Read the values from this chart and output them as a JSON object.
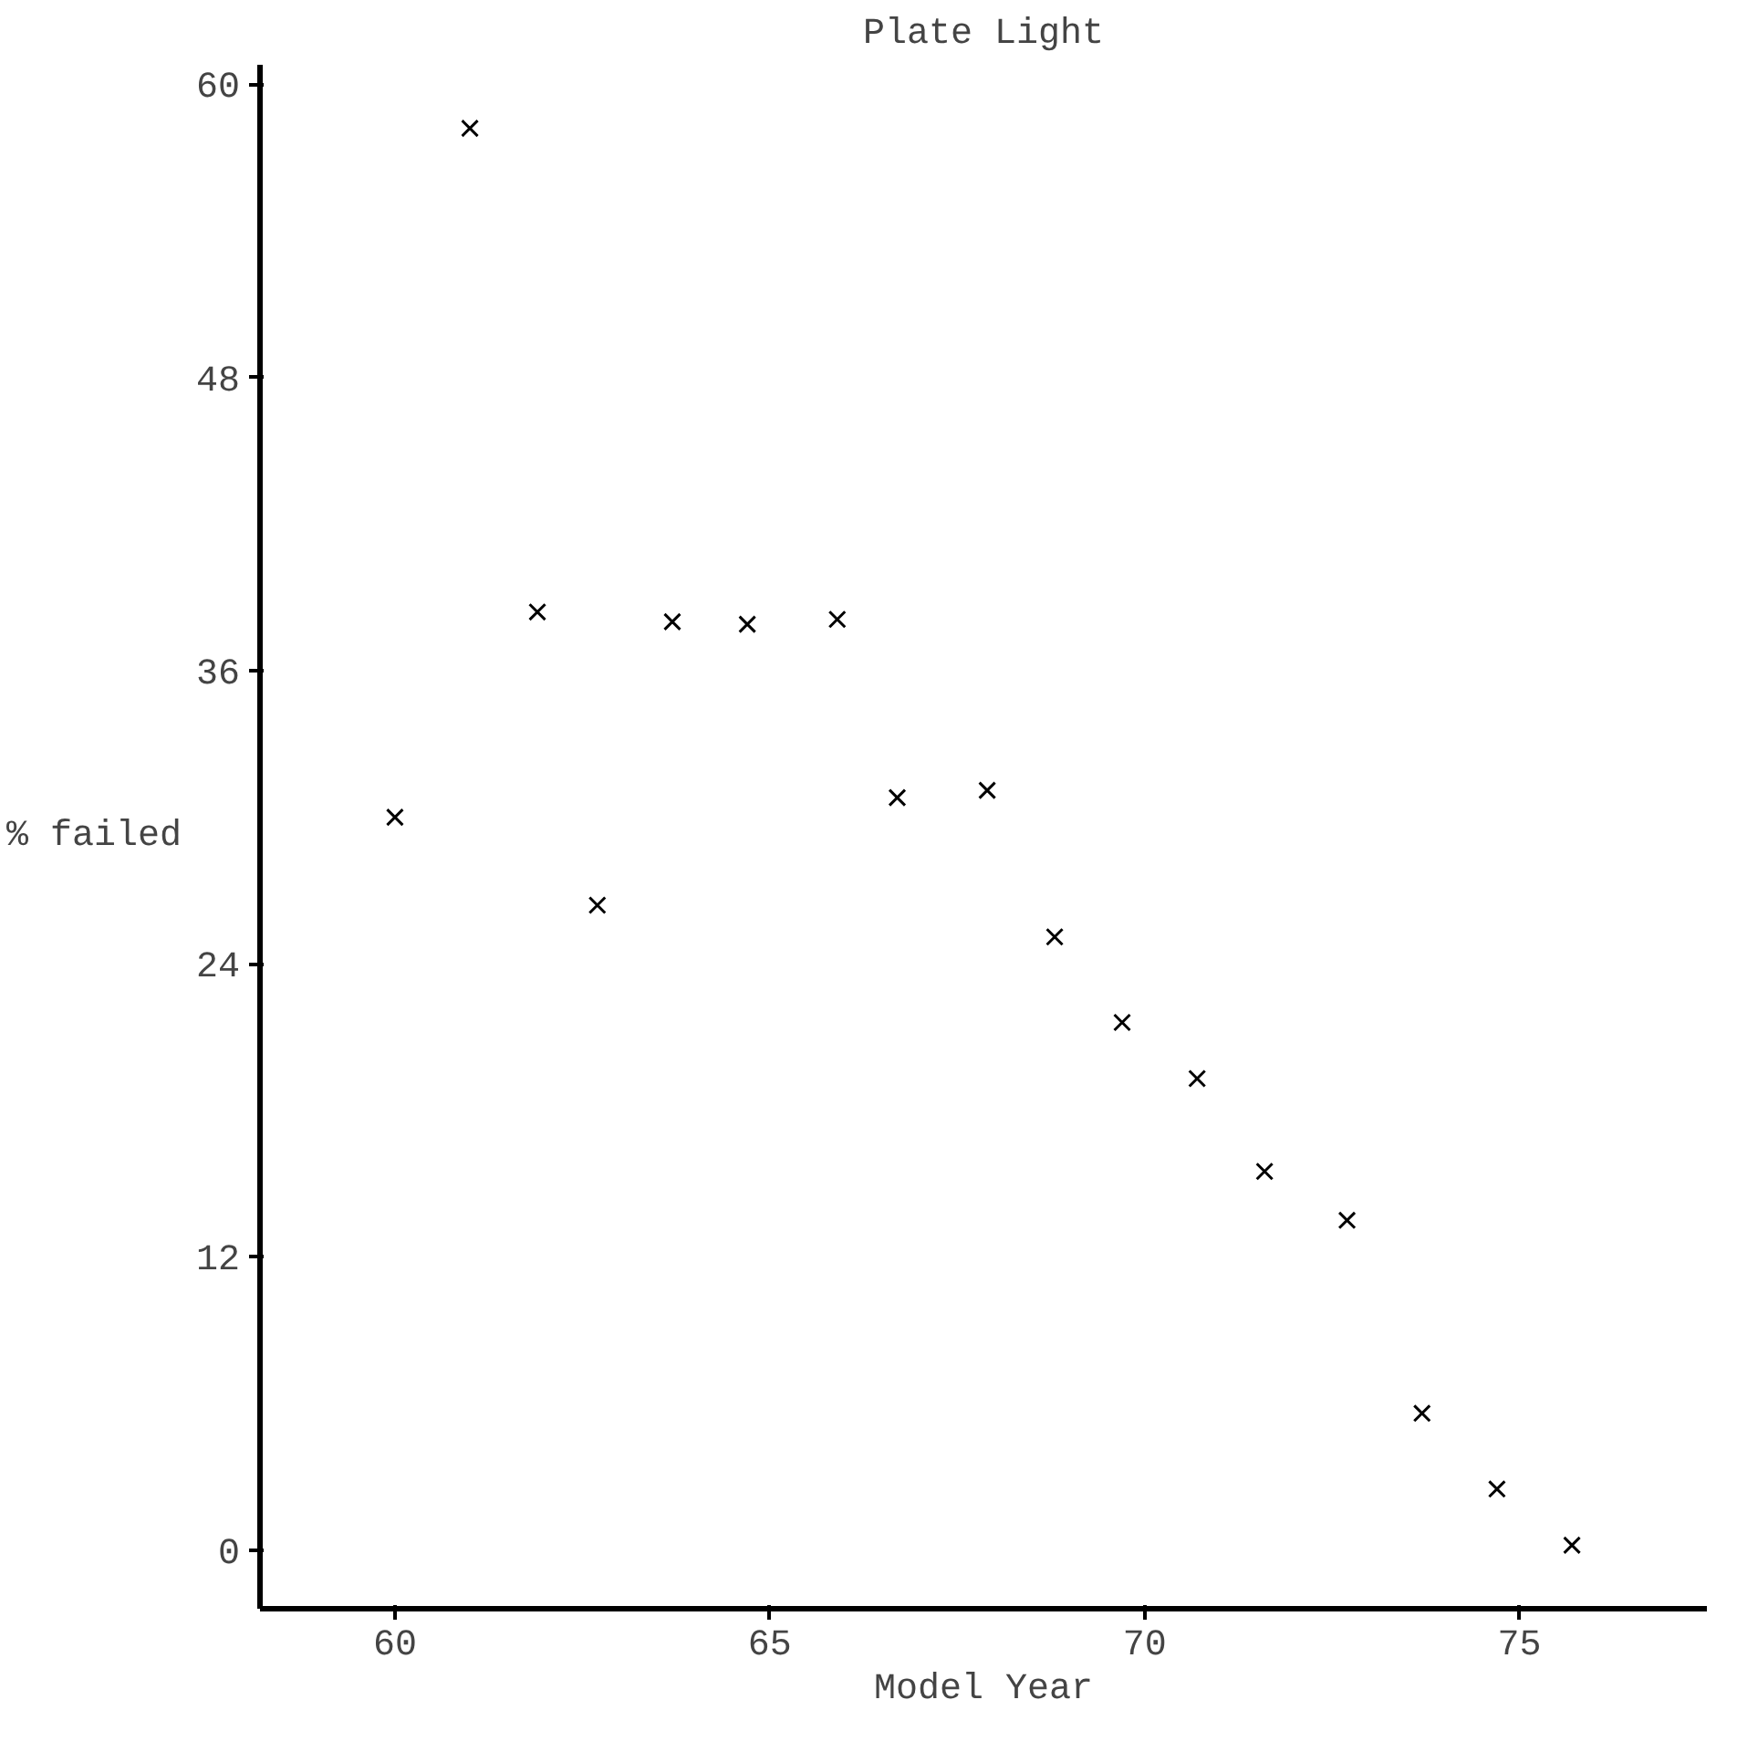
{
  "chart_data": {
    "type": "scatter",
    "title": "Plate Light",
    "xlabel": "Model Year",
    "ylabel": "% failed",
    "x": [
      60,
      61,
      61.9,
      62.7,
      63.7,
      64.7,
      65.9,
      66.7,
      67.9,
      68.8,
      69.7,
      70.7,
      71.6,
      72.7,
      73.7,
      74.7,
      75.7
    ],
    "series": [
      {
        "color": "#000000",
        "values": [
          30.0,
          58.2,
          38.4,
          26.4,
          38.0,
          37.9,
          38.1,
          30.8,
          31.1,
          25.1,
          21.6,
          19.3,
          15.5,
          13.5,
          5.6,
          2.5,
          0.2
        ]
      }
    ],
    "xlim": [
      58.2,
      77.5
    ],
    "ylim": [
      -2.4,
      60.8
    ],
    "xticks": [
      60,
      65,
      70,
      75
    ],
    "yticks": [
      0,
      12,
      24,
      36,
      48,
      60
    ],
    "marker": "cross",
    "grid": false
  }
}
